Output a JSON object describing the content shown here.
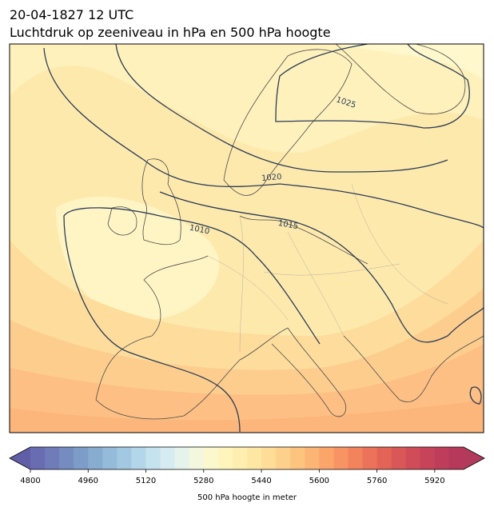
{
  "title": "20-04-1827 12 UTC",
  "subtitle": "Luchtdruk op zeeniveau in hPa en 500 hPa hoogte",
  "isobar_labels": [
    "1025",
    "1020",
    "1015",
    "1010"
  ],
  "colorbar": {
    "label": "500 hPa hoogte in meter",
    "range": [
      4800,
      6000
    ],
    "ticks": [
      4800,
      4960,
      5120,
      5280,
      5440,
      5600,
      5760,
      5920
    ],
    "under_color": "#5f5ea6",
    "over_color": "#b23a5b",
    "colors": [
      "#6a6cb2",
      "#6f7cb9",
      "#758cc0",
      "#7d9cc7",
      "#87acd0",
      "#94bbd9",
      "#a3c9e2",
      "#b4d6ea",
      "#c5e2ef",
      "#d6ecf2",
      "#e6f3ed",
      "#f2f7dd",
      "#faf8cc",
      "#fef5bd",
      "#feefb0",
      "#fee7a3",
      "#fddd97",
      "#fdd18b",
      "#fdc47f",
      "#fcb574",
      "#fba56b",
      "#f89463",
      "#f3835d",
      "#ec7359",
      "#e36457",
      "#d95757",
      "#cf4c58",
      "#c6435a",
      "#bd3d5b",
      "#b6385b"
    ]
  }
}
